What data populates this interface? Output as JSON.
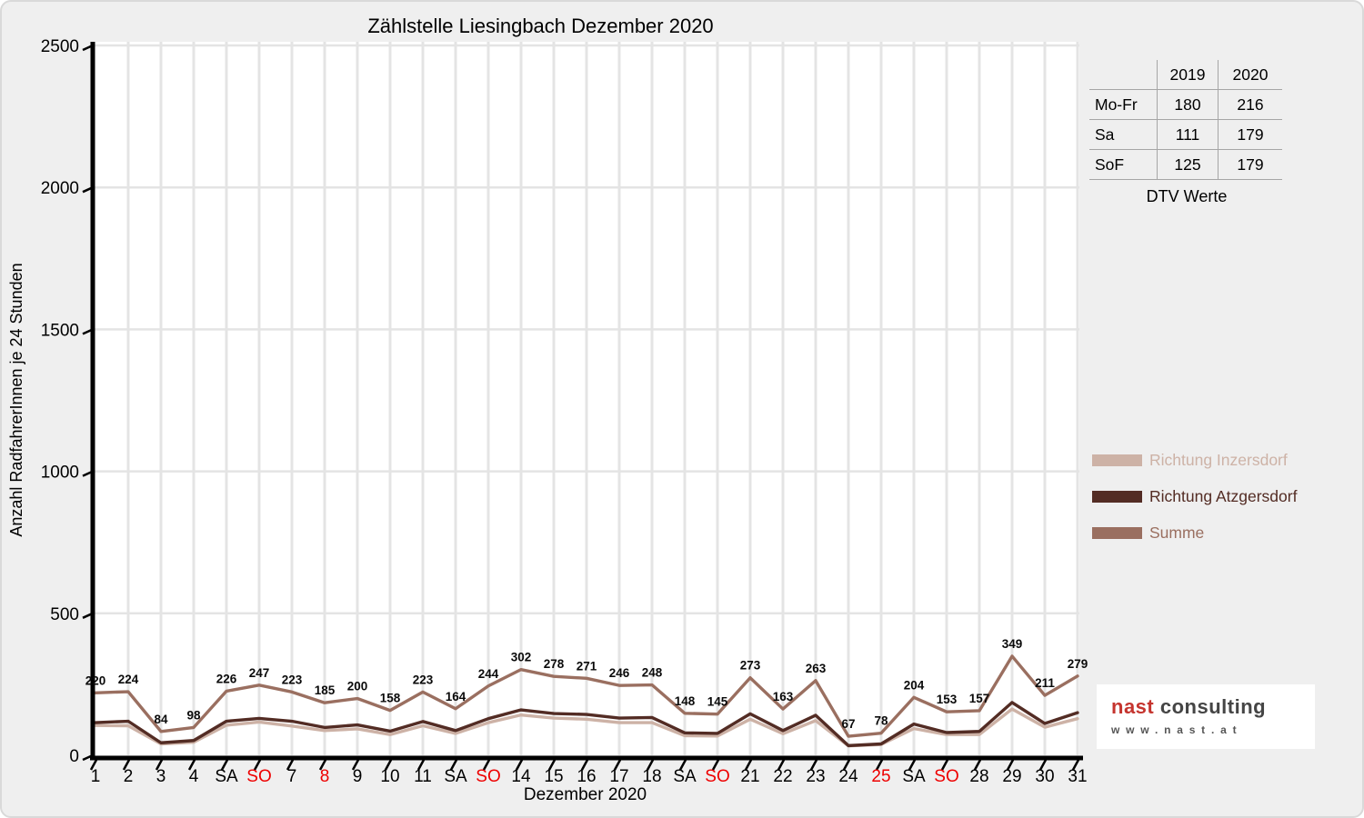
{
  "chart_data": {
    "type": "line",
    "title": "Zählstelle Liesingbach Dezember 2020",
    "xlabel": "Dezember 2020",
    "ylabel": "Anzahl RadfahrerInnen je 24 Stunden",
    "ylim": [
      0,
      2500
    ],
    "yticks": [
      0,
      500,
      1000,
      1500,
      2000,
      2500
    ],
    "grid": true,
    "legend_position": "right",
    "categories": [
      "1",
      "2",
      "3",
      "4",
      "SA",
      "SO",
      "7",
      "8",
      "9",
      "10",
      "11",
      "SA",
      "SO",
      "14",
      "15",
      "16",
      "17",
      "18",
      "SA",
      "SO",
      "21",
      "22",
      "23",
      "24",
      "25",
      "SA",
      "SO",
      "28",
      "29",
      "30",
      "31"
    ],
    "holiday_indices": [
      5,
      7,
      12,
      19,
      24,
      26
    ],
    "holiday_color": "#ee0000",
    "series": [
      {
        "name": "Richtung Inzersdorf",
        "color": "#cdb2a6",
        "data_labels": false,
        "values": [
          105,
          104,
          40,
          46,
          106,
          117,
          103,
          87,
          93,
          73,
          104,
          77,
          115,
          142,
          131,
          127,
          115,
          115,
          69,
          68,
          127,
          76,
          122,
          33,
          38,
          94,
          73,
          73,
          163,
          99,
          129
        ]
      },
      {
        "name": "Richtung Atzgersdorf",
        "color": "#532c24",
        "data_labels": false,
        "values": [
          115,
          120,
          44,
          52,
          120,
          130,
          120,
          98,
          107,
          85,
          119,
          87,
          129,
          160,
          147,
          144,
          131,
          133,
          79,
          77,
          146,
          87,
          141,
          34,
          40,
          110,
          80,
          84,
          186,
          112,
          150
        ]
      },
      {
        "name": "Summe",
        "color": "#9a6f60",
        "data_labels": true,
        "values": [
          220,
          224,
          84,
          98,
          226,
          247,
          223,
          185,
          200,
          158,
          223,
          164,
          244,
          302,
          278,
          271,
          246,
          248,
          148,
          145,
          273,
          163,
          263,
          67,
          78,
          204,
          153,
          157,
          349,
          211,
          279
        ]
      }
    ],
    "colors": {
      "background": "#efefef",
      "plot_background": "#ffffff",
      "gridline": "#e4e4e4",
      "axis": "#000000"
    }
  },
  "dtv_table": {
    "col_headers": [
      "2019",
      "2020"
    ],
    "rows": [
      {
        "label": "Mo-Fr",
        "v2019": "180",
        "v2020": "216"
      },
      {
        "label": "Sa",
        "v2019": "111",
        "v2020": "179"
      },
      {
        "label": "SoF",
        "v2019": "125",
        "v2020": "179"
      }
    ],
    "caption": "DTV Werte"
  },
  "logo": {
    "brand_bold": "nast",
    "brand_rest": " consulting",
    "website": "www.nast.at",
    "brand_bold_color": "#c5342e",
    "brand_rest_color": "#454545",
    "website_color": "#565656"
  }
}
